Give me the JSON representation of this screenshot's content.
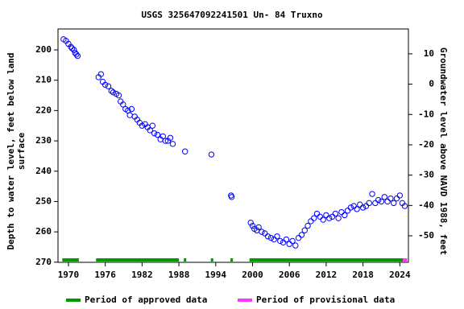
{
  "chart_data": {
    "type": "scatter",
    "title": "USGS 325647092241501 Un- 84 Truxno",
    "y_label": [
      "Depth to water level, feet below land",
      "surface"
    ],
    "y2_label": "Groundwater level above NAVD 1988, feet",
    "xlim": [
      1968.3,
      2025.4
    ],
    "xticks": [
      1970,
      1976,
      1982,
      1988,
      1994,
      2000,
      2006,
      2012,
      2018,
      2024
    ],
    "ylim": [
      193.1,
      270.05
    ],
    "y_inverted": true,
    "yticks": [
      200,
      210,
      220,
      230,
      240,
      250,
      260,
      270
    ],
    "y2lim": [
      -58.75,
      18.2
    ],
    "y2ticks": [
      10,
      0,
      -10,
      -20,
      -30,
      -40,
      -50
    ],
    "series": [
      {
        "color": "#0000ff",
        "x": [
          1969.2,
          1969.6,
          1970.0,
          1970.4,
          1970.6,
          1970.9,
          1971.1,
          1971.3,
          1971.5,
          1974.9,
          1975.3,
          1975.6,
          1976.0,
          1976.5,
          1977.0,
          1977.3,
          1977.8,
          1978.2,
          1978.5,
          1978.9,
          1979.3,
          1979.7,
          1980.0,
          1980.3,
          1980.8,
          1981.2,
          1981.6,
          1982.0,
          1982.5,
          1982.9,
          1983.3,
          1983.7,
          1984.0,
          1984.5,
          1985.0,
          1985.4,
          1985.8,
          1986.2,
          1986.6,
          1987.0,
          1989.0,
          1993.3,
          1996.5,
          1996.6,
          1999.7,
          2000.0,
          2000.3,
          2000.7,
          2001.0,
          2001.5,
          2002.0,
          2002.5,
          2003.0,
          2003.5,
          2004.0,
          2004.5,
          2005.0,
          2005.5,
          2006.0,
          2006.5,
          2007.0,
          2007.5,
          2008.0,
          2008.5,
          2009.0,
          2009.5,
          2010.0,
          2010.5,
          2011.0,
          2011.5,
          2012.0,
          2012.5,
          2013.0,
          2013.5,
          2014.0,
          2014.5,
          2015.0,
          2015.5,
          2016.0,
          2016.5,
          2017.0,
          2017.5,
          2018.0,
          2018.5,
          2019.0,
          2019.5,
          2020.0,
          2020.5,
          2021.0,
          2021.5,
          2022.0,
          2022.5,
          2023.0,
          2023.5,
          2024.0,
          2024.4,
          2024.8
        ],
        "values": [
          196.5,
          197,
          198,
          199,
          199.5,
          200,
          201,
          201.5,
          202,
          209,
          208,
          210.5,
          211.5,
          212,
          213.5,
          214,
          214.5,
          215,
          217,
          218,
          219.5,
          220,
          221.5,
          219.5,
          222,
          223,
          224,
          225,
          224.5,
          225.5,
          226.5,
          225,
          227.5,
          228,
          229.5,
          228.5,
          230,
          230,
          229,
          231,
          233.5,
          234.5,
          248,
          248.5,
          257,
          258,
          259,
          259.5,
          258.5,
          260,
          260.5,
          261.5,
          262,
          262.5,
          261.5,
          263,
          263.5,
          262.5,
          264,
          263,
          264.5,
          262,
          261,
          259.5,
          258,
          256.5,
          255.5,
          254,
          255,
          256,
          254.5,
          255.5,
          255,
          254,
          255.5,
          253.5,
          254.5,
          253,
          252,
          251.5,
          252.5,
          251,
          252,
          251.5,
          250.5,
          247.5,
          250.5,
          249.5,
          250,
          248.5,
          250,
          249,
          250.5,
          249,
          248,
          250.5,
          251.5
        ]
      }
    ],
    "periods": [
      {
        "name": "Period of approved data",
        "color": "#009900",
        "ranges": [
          [
            1969.0,
            1971.7
          ],
          [
            1974.5,
            1988.0
          ],
          [
            1988.8,
            1989.2
          ],
          [
            1993.2,
            1993.6
          ],
          [
            1996.4,
            1996.8
          ],
          [
            1999.5,
            2024.5
          ]
        ]
      },
      {
        "name": "Period of provisional data",
        "color": "#ff33ff",
        "ranges": [
          [
            2024.5,
            2025.2
          ]
        ]
      }
    ]
  }
}
